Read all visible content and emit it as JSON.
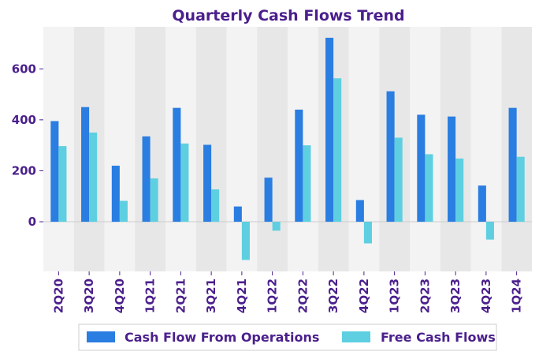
{
  "colors": {
    "text": "#4b1f8c",
    "ops": "#2a7de1",
    "fcf": "#5ecfe0",
    "band_light": "#f3f3f3",
    "band_dark": "#e7e7e7",
    "zero_line": "#cccccc"
  },
  "chart_data": {
    "type": "bar",
    "title": "Quarterly Cash Flows Trend",
    "xlabel": "",
    "ylabel": "",
    "categories": [
      "2Q20",
      "3Q20",
      "4Q20",
      "1Q21",
      "2Q21",
      "3Q21",
      "4Q21",
      "1Q22",
      "2Q22",
      "3Q22",
      "4Q22",
      "1Q23",
      "2Q23",
      "3Q23",
      "4Q23",
      "1Q24"
    ],
    "series": [
      {
        "name": "Cash Flow From Operations",
        "values": [
          395,
          450,
          220,
          335,
          447,
          302,
          60,
          173,
          440,
          722,
          85,
          512,
          420,
          413,
          142,
          447
        ]
      },
      {
        "name": "Free Cash Flows",
        "values": [
          297,
          350,
          82,
          170,
          307,
          127,
          -150,
          -35,
          300,
          563,
          -85,
          330,
          265,
          248,
          -70,
          255
        ]
      }
    ],
    "ylim": [
      -195,
      765
    ],
    "yticks": [
      0,
      200,
      400,
      600
    ],
    "legend_position": "bottom"
  }
}
